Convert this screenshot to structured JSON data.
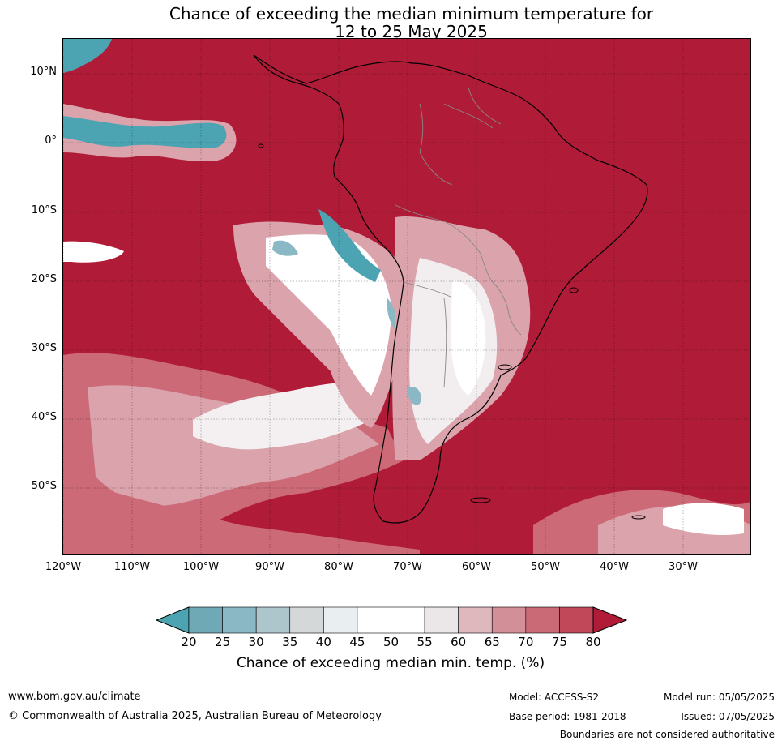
{
  "title": {
    "line1": "Chance of exceeding the median minimum temperature for",
    "line2": "12 to 25 May 2025"
  },
  "map": {
    "lat_labels": [
      "10°N",
      "0°",
      "10°S",
      "20°S",
      "30°S",
      "40°S",
      "50°S"
    ],
    "lon_labels": [
      "120°W",
      "110°W",
      "100°W",
      "90°W",
      "80°W",
      "70°W",
      "60°W",
      "50°W",
      "40°W",
      "30°W"
    ],
    "colors": {
      "ocean_high": "#b01c38",
      "band_75": "#c44358",
      "band_70": "#cd6a78",
      "band_65": "#dba3ab",
      "band_60": "#ebe2e3",
      "band_50": "#ffffff",
      "band_35": "#d5d8d9",
      "band_25": "#8ab8c4",
      "band_20": "#4ca4b2"
    }
  },
  "colorbar": {
    "ticks": [
      "20",
      "25",
      "30",
      "35",
      "40",
      "45",
      "50",
      "55",
      "60",
      "65",
      "70",
      "75",
      "80"
    ],
    "colors": [
      "#4ca4b2",
      "#6ea9b5",
      "#8ab8c4",
      "#adc6cc",
      "#d5d8d9",
      "#e9eff1",
      "#ffffff",
      "#ffffff",
      "#ebe6e7",
      "#dfb8bd",
      "#d38f98",
      "#c96a76",
      "#c04859",
      "#b01c38"
    ],
    "label": "Chance of exceeding median min. temp. (%)"
  },
  "footer": {
    "website": "www.bom.gov.au/climate",
    "copyright": "© Commonwealth of Australia 2025, Australian Bureau of Meteorology",
    "model": "Model: ACCESS-S2",
    "model_run": "Model run: 05/05/2025",
    "base_period": "Base period: 1981-2018",
    "issued": "Issued: 07/05/2025",
    "disclaimer": "Boundaries are not considered authoritative"
  }
}
